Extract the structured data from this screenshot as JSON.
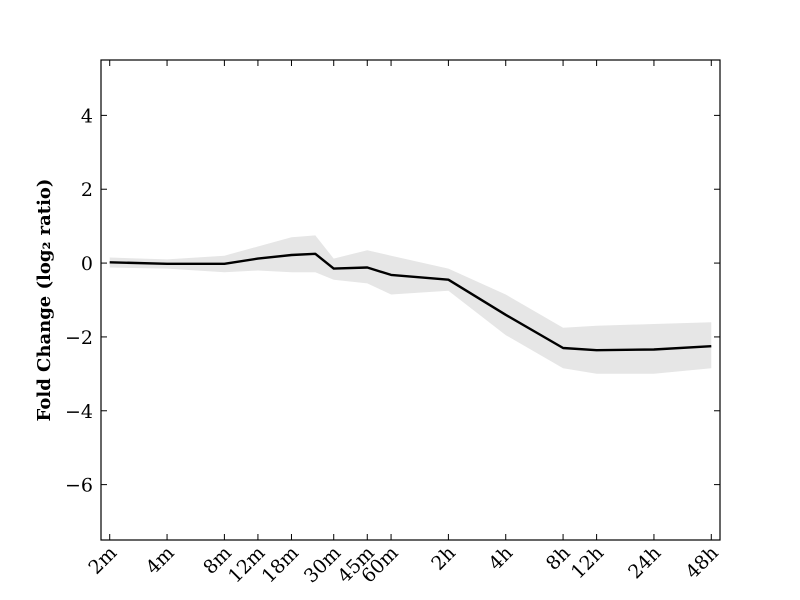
{
  "chart_data": {
    "type": "line",
    "title": "",
    "xlabel": "",
    "ylabel": "Fold Change (log₂ ratio)",
    "ylim": [
      -7.5,
      5.5
    ],
    "yticks": [
      4,
      2,
      0,
      -2,
      -4,
      -6
    ],
    "ytick_labels": [
      "4",
      "2",
      "0",
      "−2",
      "−4",
      "−6"
    ],
    "x_scale": "log",
    "x_unit": "minutes",
    "xlim_minutes": [
      1.8,
      3200
    ],
    "xticks_minutes": [
      2,
      4,
      8,
      12,
      18,
      30,
      45,
      60,
      120,
      240,
      480,
      720,
      1440,
      2880
    ],
    "xtick_labels": [
      "2m",
      "4m",
      "8m",
      "12m",
      "18m",
      "30m",
      "45m",
      "60m",
      "2h",
      "4h",
      "8h",
      "12h",
      "24h",
      "48h"
    ],
    "grid": false,
    "series": [
      {
        "style": "line",
        "color": "#000000",
        "x": [
          2,
          4,
          8,
          12,
          18,
          24,
          30,
          45,
          60,
          120,
          240,
          480,
          720,
          1440,
          2880
        ],
        "y": [
          0.02,
          -0.02,
          -0.02,
          0.12,
          0.22,
          0.25,
          -0.15,
          -0.12,
          -0.32,
          -0.45,
          -1.4,
          -2.3,
          -2.36,
          -2.34,
          -2.25
        ]
      }
    ],
    "band": {
      "style": "area",
      "color": "#e6e6e6",
      "x": [
        2,
        4,
        8,
        12,
        18,
        24,
        30,
        45,
        60,
        120,
        240,
        480,
        720,
        1440,
        2880
      ],
      "upper": [
        0.15,
        0.1,
        0.2,
        0.45,
        0.7,
        0.75,
        0.12,
        0.35,
        0.2,
        -0.15,
        -0.85,
        -1.75,
        -1.7,
        -1.65,
        -1.6
      ],
      "lower": [
        -0.12,
        -0.15,
        -0.25,
        -0.2,
        -0.25,
        -0.25,
        -0.45,
        -0.55,
        -0.85,
        -0.75,
        -1.95,
        -2.85,
        -3.0,
        -3.0,
        -2.85
      ]
    }
  }
}
